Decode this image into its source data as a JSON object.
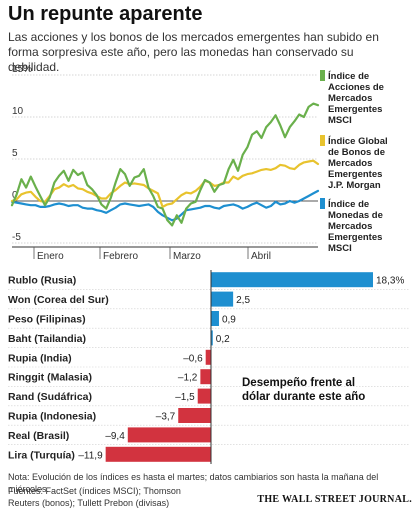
{
  "header": {
    "title": "Un repunte aparente",
    "subtitle": "Las acciones y los bonos de los mercados emergentes han subido en forma sorpresiva este año, pero las monedas han conservado su debilidad."
  },
  "footer": {
    "note": "Nota: Evolución de los índices es hasta el martes; datos cambiarios son hasta la mañana del miércoles.",
    "sources": "Fuentes: FactSet (índices MSCI); Thomson Reuters (bonos); Tullett Prebon (divisas)",
    "brand": "THE WALL STREET JOURNAL."
  },
  "chart_data": [
    {
      "type": "line",
      "x_tick_labels": [
        "Enero",
        "Febrero",
        "Marzo",
        "Abril"
      ],
      "y_tick_labels": [
        "15%",
        "10",
        "5",
        "0",
        "-5"
      ],
      "ylim": [
        -5,
        15
      ],
      "grid": true,
      "legend_position": "right",
      "series": [
        {
          "name": "Índice de Acciones de Mercados Emergentes MSCI",
          "legend_lines": [
            "Índice de",
            "Acciones de",
            "Mercados",
            "Emergentes",
            "MSCI"
          ],
          "color": "#6ab04c",
          "values": [
            -0.5,
            0.8,
            2.6,
            1.6,
            2.9,
            1.7,
            0.6,
            -0.5,
            0.4,
            2.2,
            3.0,
            3.6,
            2.4,
            3.7,
            3.1,
            3.4,
            1.9,
            1.4,
            0.7,
            -0.4,
            -0.9,
            0.4,
            2.2,
            3.8,
            3.2,
            1.8,
            2.8,
            3.0,
            3.8,
            1.6,
            0.6,
            -0.7,
            -0.9,
            -2.3,
            -2.9,
            -1.7,
            -2.6,
            -0.9,
            -0.3,
            -0.1,
            1.3,
            2.5,
            2.2,
            1.1,
            1.9,
            2.1,
            3.8,
            4.9,
            3.6,
            5.5,
            6.4,
            7.9,
            8.3,
            7.5,
            8.8,
            9.4,
            10.2,
            9.0,
            7.6,
            8.8,
            9.5,
            10.3,
            10.0,
            11.2,
            11.6,
            11.4
          ]
        },
        {
          "name": "Índice Global de Bonos de Mercados Emergentes J.P. Morgan",
          "legend_lines": [
            "Índice Global",
            "de Bonos de",
            "Mercados",
            "Emergentes",
            "J.P. Morgan"
          ],
          "color": "#e8c32e",
          "values": [
            0.0,
            0.2,
            0.8,
            1.0,
            1.1,
            0.5,
            0.0,
            -0.1,
            0.6,
            1.4,
            1.6,
            2.0,
            1.7,
            1.9,
            1.5,
            1.4,
            1.1,
            0.9,
            0.6,
            0.3,
            0.3,
            0.9,
            1.3,
            1.8,
            2.2,
            2.0,
            2.1,
            2.0,
            1.9,
            1.5,
            1.2,
            0.9,
            -0.7,
            -0.4,
            -0.3,
            0.2,
            0.7,
            1.0,
            0.9,
            1.2,
            1.7,
            2.4,
            2.2,
            1.8,
            1.9,
            2.2,
            2.2,
            2.9,
            2.6,
            3.0,
            3.2,
            3.3,
            3.5,
            3.7,
            3.8,
            3.7,
            3.9,
            4.3,
            4.2,
            3.9,
            3.8,
            4.3,
            4.6,
            4.7,
            4.8,
            4.4
          ]
        },
        {
          "name": "Índice de Monedas de Mercados Emergentes MSCI",
          "legend_lines": [
            "Índice de",
            "Monedas de",
            "Mercados",
            "Emergentes",
            "MSCI"
          ],
          "color": "#1e8fd0",
          "values": [
            -0.1,
            -0.2,
            -0.3,
            -0.4,
            -0.5,
            -0.5,
            -0.7,
            -0.7,
            -0.6,
            -0.4,
            -0.3,
            -0.4,
            -0.6,
            -0.5,
            -0.5,
            -0.8,
            -0.9,
            -0.9,
            -1.1,
            -1.2,
            -1.4,
            -1.1,
            -0.8,
            -0.4,
            -0.3,
            -0.4,
            -0.5,
            -0.6,
            -0.5,
            -0.4,
            -0.7,
            -1.3,
            -1.7,
            -2.0,
            -2.3,
            -2.1,
            -1.6,
            -1.1,
            -1.0,
            -0.9,
            -0.8,
            -0.6,
            -0.6,
            -0.8,
            -0.9,
            -0.6,
            -0.5,
            -0.4,
            -0.6,
            -0.9,
            -0.7,
            -0.4,
            -0.2,
            -0.5,
            -0.8,
            -0.6,
            -0.1,
            -0.4,
            -0.3,
            0.0,
            -0.2,
            0.0,
            0.3,
            0.6,
            0.9,
            1.2
          ]
        }
      ]
    },
    {
      "type": "bar",
      "orientation": "horizontal",
      "annotation_lines": [
        "Desempeño frente al",
        "dólar durante este año"
      ],
      "value_labels": [
        "18,3%",
        "2,5",
        "0,9",
        "0,2",
        "–0,6",
        "–1,2",
        "–1,5",
        "–3,7",
        "–9,4",
        "–11,9"
      ],
      "categories": [
        "Rublo (Rusia)",
        "Won (Corea del Sur)",
        "Peso (Filipinas)",
        "Baht (Tailandia)",
        "Rupia (India)",
        "Ringgit (Malasia)",
        "Rand (Sudáfrica)",
        "Rupia (Indonesia)",
        "Real (Brasil)",
        "Lira (Turquía)"
      ],
      "values": [
        18.3,
        2.5,
        0.9,
        0.2,
        -0.6,
        -1.2,
        -1.5,
        -3.7,
        -9.4,
        -11.9
      ],
      "positive_color": "#1e8fd0",
      "negative_color": "#d2333f"
    }
  ]
}
